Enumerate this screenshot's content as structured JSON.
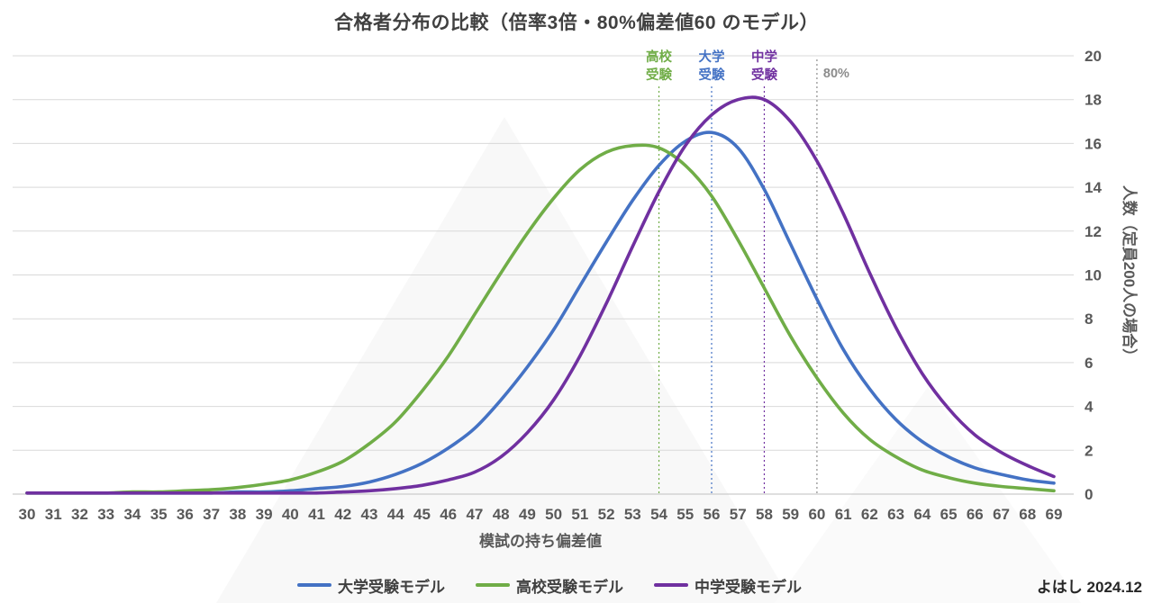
{
  "credit": "よはし 2024.12",
  "chart_data": {
    "type": "line",
    "title": "合格者分布の比較（倍率3倍・80%偏差値60 のモデル）",
    "xlabel": "模試の持ち偏差値",
    "ylabel": "人数（定員200人の場合）",
    "xlim": [
      30,
      69
    ],
    "ylim": [
      0,
      20
    ],
    "yticks": [
      0,
      2,
      4,
      6,
      8,
      10,
      12,
      14,
      16,
      18,
      20
    ],
    "grid": "horizontal",
    "legend_position": "bottom",
    "x": [
      30,
      31,
      32,
      33,
      34,
      35,
      36,
      37,
      38,
      39,
      40,
      41,
      42,
      43,
      44,
      45,
      46,
      47,
      48,
      49,
      50,
      51,
      52,
      53,
      54,
      55,
      56,
      57,
      58,
      59,
      60,
      61,
      62,
      63,
      64,
      65,
      66,
      67,
      68,
      69
    ],
    "series": [
      {
        "name": "大学受験モデル",
        "color": "#4472C4",
        "values": [
          0.05,
          0.05,
          0.05,
          0.05,
          0.05,
          0.05,
          0.05,
          0.05,
          0.1,
          0.1,
          0.15,
          0.25,
          0.35,
          0.55,
          0.9,
          1.4,
          2.1,
          3.0,
          4.3,
          5.8,
          7.5,
          9.5,
          11.5,
          13.4,
          15.0,
          16.1,
          16.5,
          15.8,
          13.9,
          11.4,
          8.9,
          6.6,
          4.8,
          3.4,
          2.4,
          1.7,
          1.2,
          0.9,
          0.65,
          0.5
        ]
      },
      {
        "name": "高校受験モデル",
        "color": "#70AD47",
        "values": [
          0.05,
          0.05,
          0.05,
          0.05,
          0.1,
          0.1,
          0.15,
          0.2,
          0.3,
          0.45,
          0.65,
          1.0,
          1.5,
          2.3,
          3.3,
          4.7,
          6.3,
          8.2,
          10.1,
          11.9,
          13.5,
          14.8,
          15.6,
          15.9,
          15.8,
          15.0,
          13.6,
          11.6,
          9.4,
          7.2,
          5.3,
          3.7,
          2.5,
          1.7,
          1.1,
          0.75,
          0.5,
          0.35,
          0.25,
          0.15
        ]
      },
      {
        "name": "中学受験モデル",
        "color": "#7030A0",
        "values": [
          0.05,
          0.05,
          0.05,
          0.05,
          0.05,
          0.05,
          0.05,
          0.05,
          0.05,
          0.05,
          0.05,
          0.05,
          0.1,
          0.15,
          0.25,
          0.4,
          0.65,
          1.0,
          1.7,
          2.8,
          4.3,
          6.3,
          8.7,
          11.3,
          13.8,
          15.9,
          17.3,
          18.0,
          18.0,
          17.0,
          15.2,
          12.8,
          10.1,
          7.6,
          5.5,
          3.9,
          2.7,
          1.9,
          1.3,
          0.8
        ]
      }
    ],
    "annotations": [
      {
        "x": 54,
        "lines": [
          "高校",
          "受験"
        ],
        "color": "#70AD47"
      },
      {
        "x": 56,
        "lines": [
          "大学",
          "受験"
        ],
        "color": "#4472C4"
      },
      {
        "x": 58,
        "lines": [
          "中学",
          "受験"
        ],
        "color": "#7030A0"
      },
      {
        "x": 60,
        "lines": [
          "80%"
        ],
        "color": "#8C8C8C"
      }
    ]
  }
}
